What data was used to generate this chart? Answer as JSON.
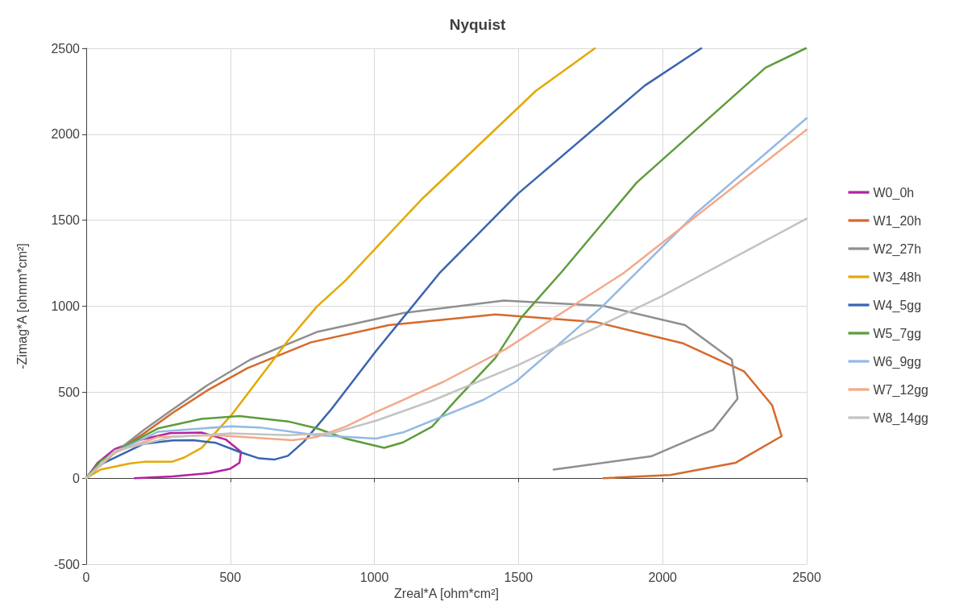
{
  "chart_data": {
    "type": "line",
    "title": "Nyquist",
    "xlabel": "Zreal*A [ohm*cm²]",
    "ylabel": "-Zimag*A [ohmm*cm²]",
    "xlim": [
      0,
      2500
    ],
    "xticks": [
      0,
      500,
      1000,
      1500,
      2000,
      2500
    ],
    "ylim": [
      -500,
      2500
    ],
    "yticks": [
      -500,
      0,
      500,
      1000,
      1500,
      2000,
      2500
    ],
    "grid": true,
    "legend": "right",
    "marker": "none",
    "line_style": "solid",
    "series": [
      {
        "name": "W0_0h",
        "color": "#b5219f",
        "x": [
          0,
          40,
          100,
          180,
          290,
          400,
          484,
          537,
          532,
          500,
          430,
          300,
          168
        ],
        "values": [
          0,
          90,
          170,
          220,
          262,
          265,
          225,
          153,
          90,
          55,
          30,
          10,
          0
        ]
      },
      {
        "name": "W1_20h",
        "color": "#d6692b",
        "x": [
          0,
          100,
          200,
          300,
          420,
          560,
          780,
          1050,
          1420,
          1770,
          2069,
          2282,
          2380,
          2413,
          2254,
          2027,
          1795
        ],
        "values": [
          0,
          150,
          260,
          380,
          510,
          640,
          790,
          890,
          952,
          907,
          785,
          622,
          424,
          244,
          90,
          18,
          0
        ]
      },
      {
        "name": "W2_27h",
        "color": "#8f8f8f",
        "x": [
          0,
          100,
          200,
          300,
          420,
          570,
          800,
          1100,
          1449,
          1793,
          2078,
          2240,
          2260,
          2175,
          1960,
          1622
        ],
        "values": [
          0,
          150,
          280,
          400,
          540,
          690,
          850,
          960,
          1033,
          1002,
          890,
          690,
          462,
          281,
          127,
          50
        ]
      },
      {
        "name": "W3_48h",
        "color": "#e3a900",
        "x": [
          0,
          50,
          150,
          200,
          297,
          340,
          400,
          503,
          700,
          800,
          900,
          1163,
          1560,
          1765
        ],
        "values": [
          0,
          50,
          85,
          95,
          95,
          120,
          176,
          365,
          800,
          997,
          1150,
          1620,
          2252,
          2500
        ]
      },
      {
        "name": "W4_5gg",
        "color": "#3a64b0",
        "x": [
          0,
          50,
          200,
          300,
          372,
          450,
          531,
          600,
          652,
          700,
          755,
          850,
          1006,
          1225,
          1499,
          1938,
          2134
        ],
        "values": [
          0,
          80,
          200,
          220,
          221,
          205,
          153,
          115,
          108,
          130,
          212,
          400,
          740,
          1191,
          1656,
          2283,
          2500
        ]
      },
      {
        "name": "W5_7gg",
        "color": "#5e9c3c",
        "x": [
          0,
          50,
          150,
          250,
          400,
          531,
          700,
          800,
          900,
          1034,
          1099,
          1200,
          1286,
          1420,
          1510,
          1650,
          1910,
          2357,
          2497
        ],
        "values": [
          0,
          100,
          200,
          290,
          345,
          361,
          330,
          290,
          230,
          176,
          208,
          300,
          460,
          700,
          935,
          1200,
          1719,
          2387,
          2500
        ]
      },
      {
        "name": "W6_9gg",
        "color": "#94b9e3",
        "x": [
          0,
          100,
          250,
          503,
          600,
          800,
          1006,
          1099,
          1379,
          1490,
          1790,
          2114,
          2500
        ],
        "values": [
          0,
          150,
          270,
          302,
          295,
          250,
          230,
          266,
          456,
          560,
          997,
          1538,
          2094
        ]
      },
      {
        "name": "W7_12gg",
        "color": "#f3a98a",
        "x": [
          0,
          100,
          250,
          450,
          716,
          800,
          900,
          1000,
          1239,
          1454,
          1863,
          2500
        ],
        "values": [
          0,
          150,
          240,
          250,
          221,
          240,
          300,
          380,
          560,
          749,
          1191,
          2027
        ]
      },
      {
        "name": "W8_14gg",
        "color": "#c3c3c3",
        "x": [
          0,
          100,
          300,
          500,
          700,
          850,
          1006,
          1200,
          1499,
          1994,
          2500
        ],
        "values": [
          0,
          160,
          240,
          260,
          250,
          260,
          334,
          450,
          658,
          1056,
          1510
        ]
      }
    ]
  }
}
